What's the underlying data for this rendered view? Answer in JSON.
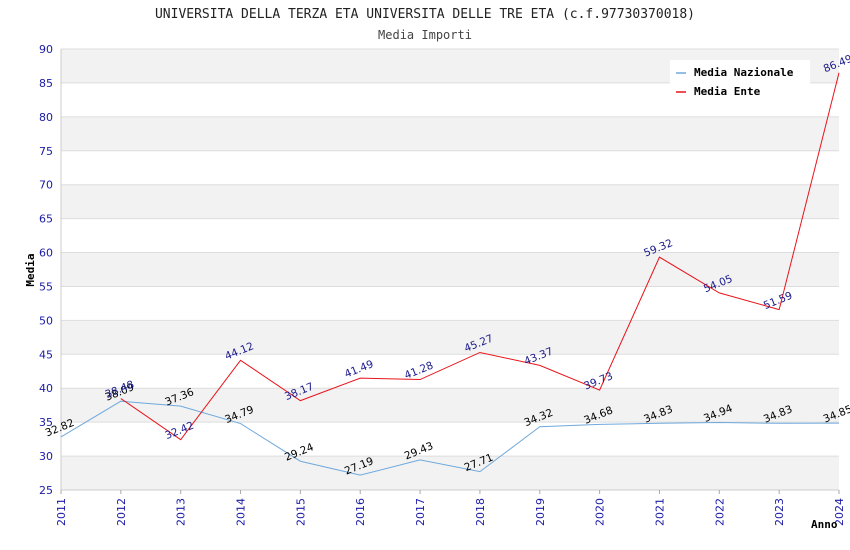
{
  "chart_data": {
    "type": "line",
    "title": "UNIVERSITA DELLA TERZA ETA UNIVERSITA DELLE TRE ETA (c.f.97730370018)",
    "subtitle": "Media Importi",
    "xlabel": "Anno",
    "ylabel": "Media",
    "ylim": [
      25,
      90
    ],
    "ytick_step": 5,
    "grid": true,
    "legend_position": "top-right",
    "x": [
      "2011",
      "2012",
      "2013",
      "2014",
      "2015",
      "2016",
      "2017",
      "2018",
      "2019",
      "2020",
      "2021",
      "2022",
      "2023",
      "2024"
    ],
    "series": [
      {
        "name": "Media Nazionale",
        "color": "#6fa8dc",
        "label_color": "#000000",
        "values": [
          32.82,
          38.09,
          37.36,
          34.79,
          29.24,
          27.19,
          29.43,
          27.71,
          34.32,
          34.68,
          34.83,
          34.94,
          34.83,
          34.85
        ],
        "labels": [
          "32.82",
          "38.09",
          "37.36",
          "34.79",
          "29.24",
          "27.19",
          "29.43",
          "27.71",
          "34.32",
          "34.68",
          "34.83",
          "34.94",
          "34.83",
          "34.85"
        ]
      },
      {
        "name": "Media Ente",
        "color": "#e8141b",
        "label_color": "#1a1a8c",
        "values": [
          null,
          38.48,
          32.42,
          44.12,
          38.17,
          41.49,
          41.28,
          45.27,
          43.37,
          39.73,
          59.32,
          54.05,
          51.59,
          86.49
        ],
        "labels": [
          null,
          "38.48",
          "32.42",
          "44.12",
          "38.17",
          "41.49",
          "41.28",
          "45.27",
          "43.37",
          "39.73",
          "59.32",
          "54.05",
          "51.59",
          "86.49"
        ]
      }
    ]
  }
}
